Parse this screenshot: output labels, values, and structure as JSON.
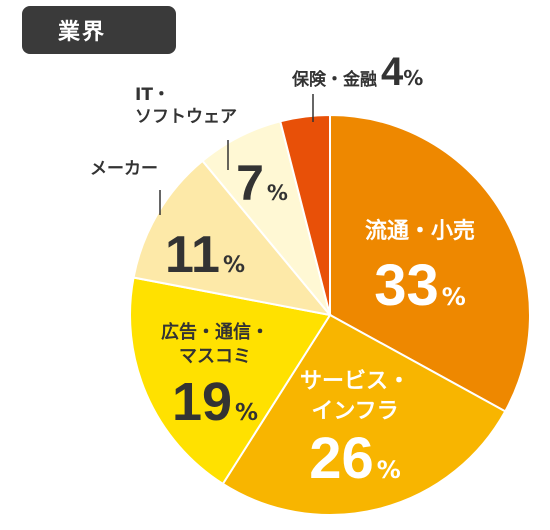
{
  "header": {
    "badge_label": "業界"
  },
  "chart_data": {
    "type": "pie",
    "title": "",
    "unit": "%",
    "slices": [
      {
        "label_lines": [
          "流通・小売"
        ],
        "value": 33,
        "color": "#ee8800",
        "text_color": "#ffffff",
        "label_position": "inside"
      },
      {
        "label_lines": [
          "サービス・",
          "インフラ"
        ],
        "value": 26,
        "color": "#f8b500",
        "text_color": "#ffffff",
        "label_position": "inside"
      },
      {
        "label_lines": [
          "広告・通信・",
          "マスコミ"
        ],
        "value": 19,
        "color": "#ffe100",
        "text_color": "#333333",
        "label_position": "inside"
      },
      {
        "label_lines": [
          "メーカー"
        ],
        "value": 11,
        "color": "#fde9a8",
        "text_color": "#333333",
        "label_position": "outside-left"
      },
      {
        "label_lines": [
          "IT・",
          "ソフトウェア"
        ],
        "value": 7,
        "color": "#fff8d4",
        "text_color": "#333333",
        "label_position": "outside-top"
      },
      {
        "label_lines": [
          "保険・金融"
        ],
        "value": 4,
        "color": "#e85008",
        "text_color": "#333333",
        "label_position": "outside-top-inline"
      }
    ]
  }
}
